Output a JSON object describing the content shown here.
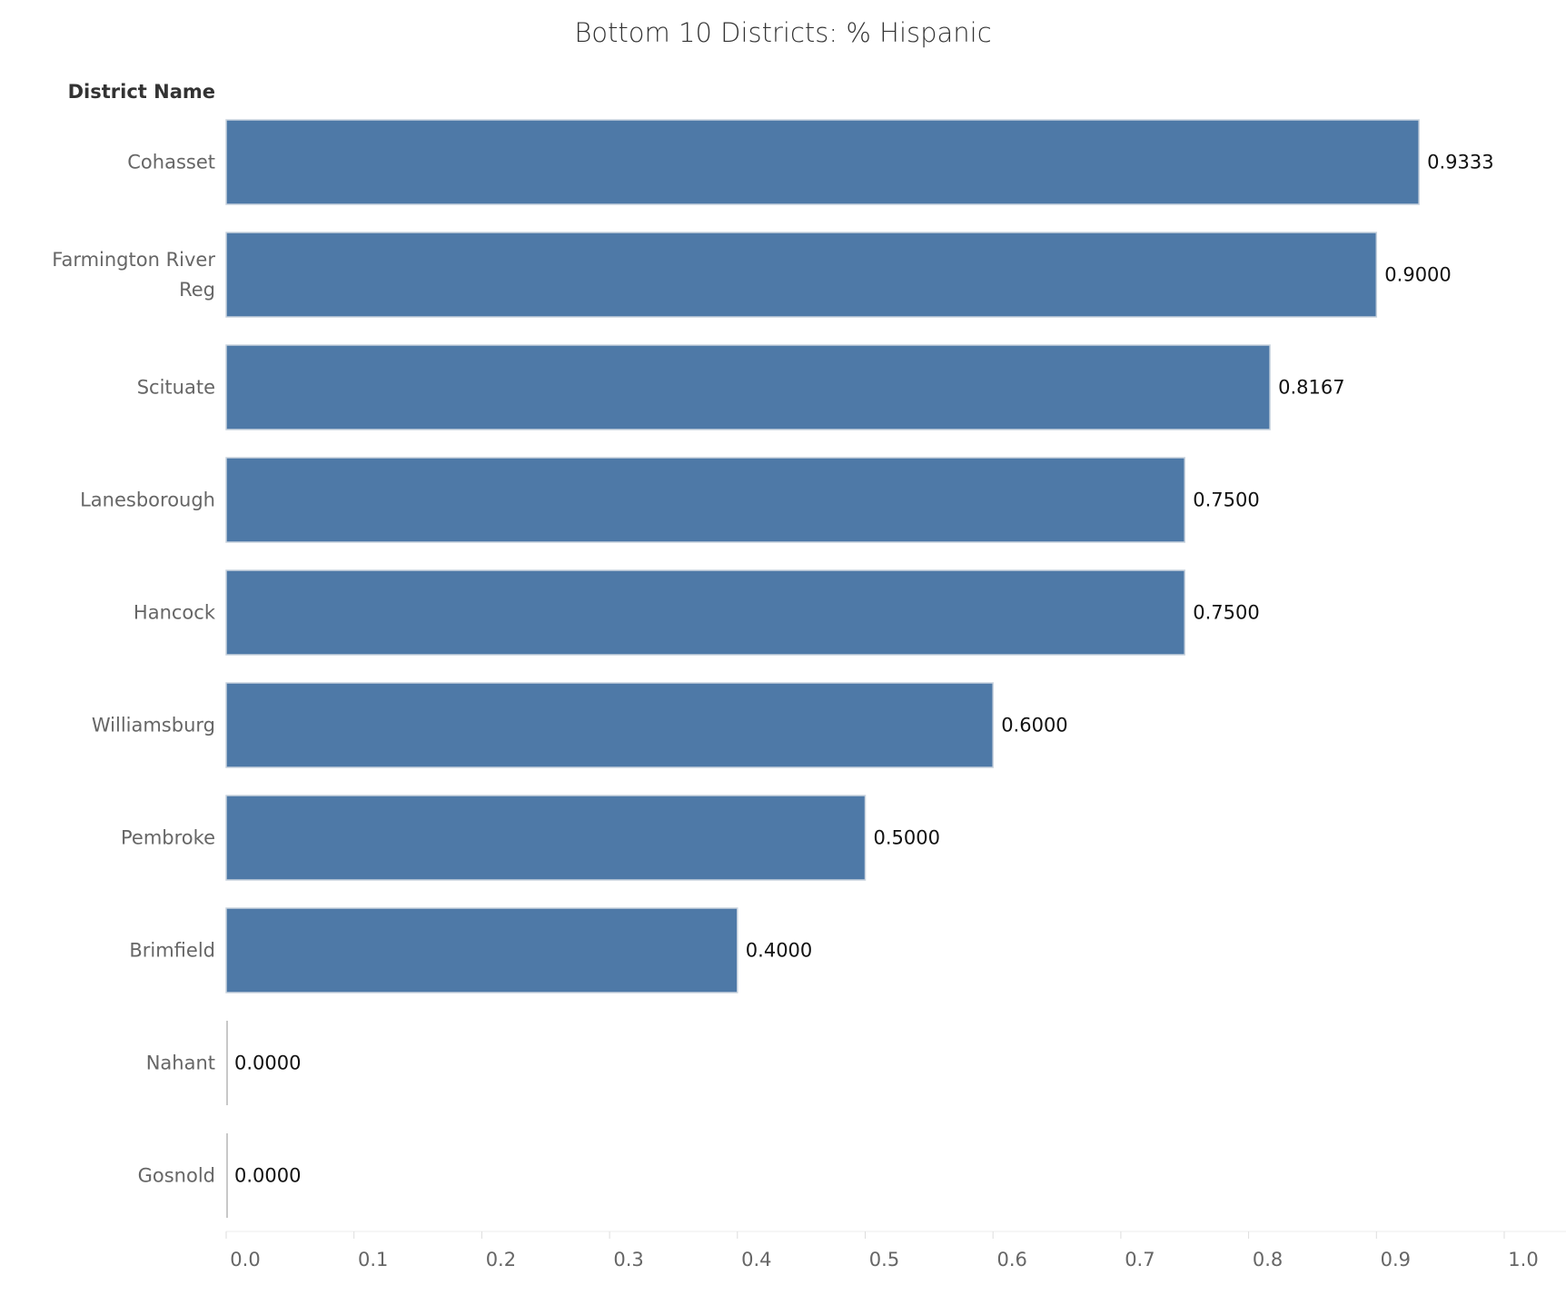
{
  "chart_data": {
    "type": "bar",
    "orientation": "horizontal",
    "title": "Bottom 10 Districts: % Hispanic",
    "row_header": "District Name",
    "categories": [
      [
        "Cohasset"
      ],
      [
        "Farmington River",
        "Reg"
      ],
      [
        "Scituate"
      ],
      [
        "Lanesborough"
      ],
      [
        "Hancock"
      ],
      [
        "Williamsburg"
      ],
      [
        "Pembroke"
      ],
      [
        "Brimfield"
      ],
      [
        "Nahant"
      ],
      [
        "Gosnold"
      ]
    ],
    "values": [
      0.9333,
      0.9,
      0.8167,
      0.75,
      0.75,
      0.6,
      0.5,
      0.4,
      0.0,
      0.0
    ],
    "value_labels": [
      "0.9333",
      "0.9000",
      "0.8167",
      "0.7500",
      "0.7500",
      "0.6000",
      "0.5000",
      "0.4000",
      "0.0000",
      "0.0000"
    ],
    "xlim": [
      0,
      1.0
    ],
    "x_ticks": [
      "0.0",
      "0.1",
      "0.2",
      "0.3",
      "0.4",
      "0.5",
      "0.6",
      "0.7",
      "0.8",
      "0.9",
      "1.0"
    ],
    "bar_color": "#4e79a7",
    "grid": false
  }
}
